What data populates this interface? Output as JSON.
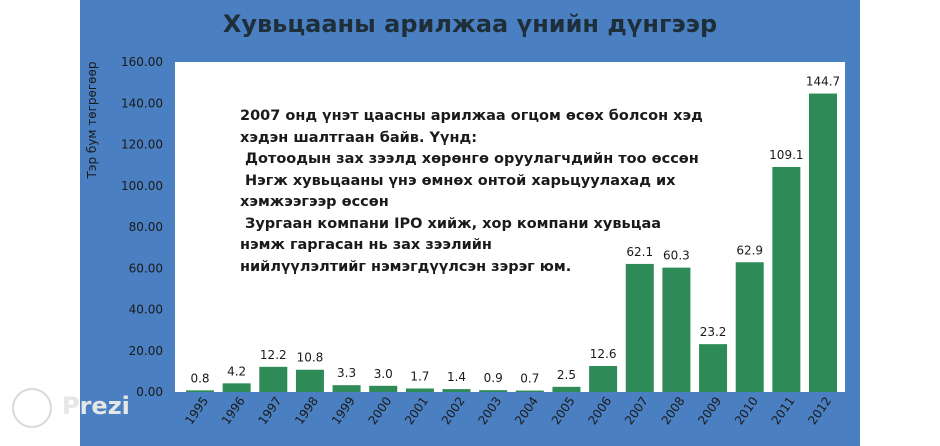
{
  "chart_data": {
    "type": "bar",
    "title": "Хувьцааны арилжаа үнийн дүнгээр",
    "ylabel": "Тэр бум төгрөгөөр",
    "xlabel": "",
    "categories": [
      "1995",
      "1996",
      "1997",
      "1998",
      "1999",
      "2000",
      "2001",
      "2002",
      "2003",
      "2004",
      "2005",
      "2006",
      "2007",
      "2008",
      "2009",
      "2010",
      "2011",
      "2012"
    ],
    "values": [
      0.8,
      4.2,
      12.2,
      10.8,
      3.3,
      3.0,
      1.7,
      1.4,
      0.9,
      0.7,
      2.5,
      12.6,
      62.1,
      60.3,
      23.2,
      62.9,
      109.1,
      144.7
    ],
    "data_labels": [
      "0.8",
      "4.2",
      "12.2",
      "10.8",
      "3.3",
      "3.0",
      "1.7",
      "1.4",
      "0.9",
      "0.7",
      "2.5",
      "12.6",
      "62.1",
      "60.3",
      "23.2",
      "62.9",
      "109.1",
      "144.7"
    ],
    "ylim": [
      0,
      160
    ],
    "yticks": [
      "0.00",
      "20.00",
      "40.00",
      "60.00",
      "80.00",
      "100.00",
      "120.00",
      "140.00",
      "160.00"
    ],
    "grid": false,
    "legend": "none",
    "bar_color": "#2e8b57",
    "annotation_lines": [
      "2007 онд үнэт цаасны арилжаа огцом өсөх болсон хэд",
      "хэдэн шалтгаан байв. Үүнд:",
      " Дотоодын зах зээлд хөрөнгө оруулагчдийн тоо өссөн",
      " Нэгж хувьцааны үнэ өмнөх онтой харьцуулахад их",
      "хэмжээгээр өссөн",
      " Зургаан компани IPO хийж, хор компани хувьцаа",
      "нэмж гаргасан нь зах зээлийн",
      "нийлүүлэлтийг нэмэгдүүлсэн зэрэг юм."
    ]
  },
  "branding": {
    "logo_text": "Prezi",
    "logo_icon": "prezi-logo-icon"
  },
  "colors": {
    "panel": "#4a7fc1",
    "plot_bg": "#ffffff",
    "bar": "#2e8b57"
  }
}
